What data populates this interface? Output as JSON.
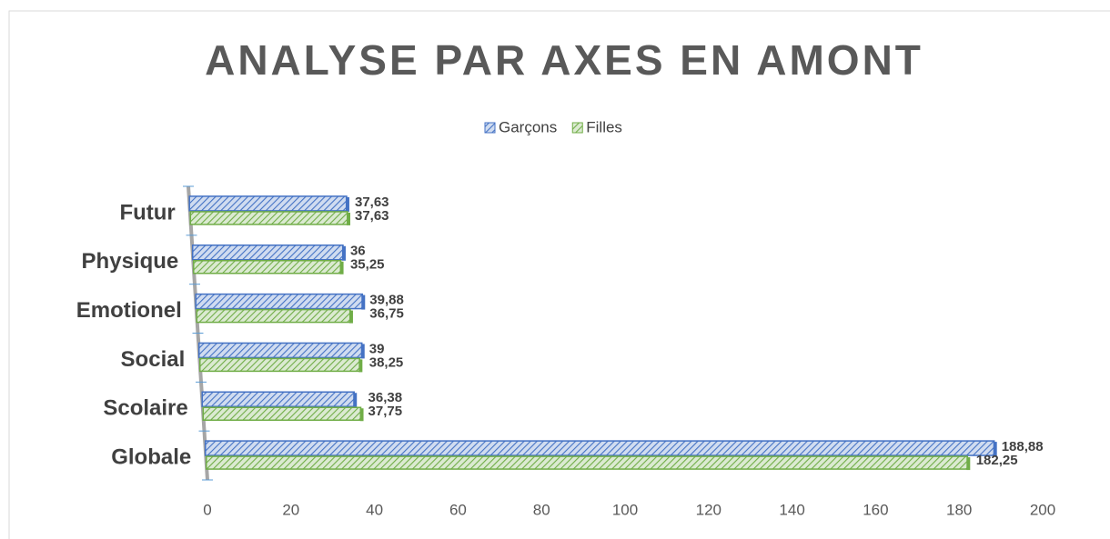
{
  "chart_data": {
    "type": "bar",
    "orientation": "horizontal",
    "title": "ANALYSE PAR AXES EN AMONT",
    "categories": [
      "Futur",
      "Physique",
      "Emotionel",
      "Social",
      "Scolaire",
      "Globale"
    ],
    "series": [
      {
        "name": "Garçons",
        "color": "#4472c4",
        "values": [
          37.63,
          36,
          39.88,
          39,
          36.38,
          188.88
        ],
        "value_labels": [
          "37,63",
          "36",
          "39,88",
          "39",
          "36,38",
          "188,88"
        ]
      },
      {
        "name": "Filles",
        "color": "#70ad47",
        "values": [
          37.63,
          35.25,
          36.75,
          38.25,
          37.75,
          182.25
        ],
        "value_labels": [
          "37,63",
          "35,25",
          "36,75",
          "38,25",
          "37,75",
          "182,25"
        ]
      }
    ],
    "xlim": [
      0,
      200
    ],
    "xticks": [
      0,
      20,
      40,
      60,
      80,
      100,
      120,
      140,
      160,
      180,
      200
    ],
    "legend": "top"
  }
}
